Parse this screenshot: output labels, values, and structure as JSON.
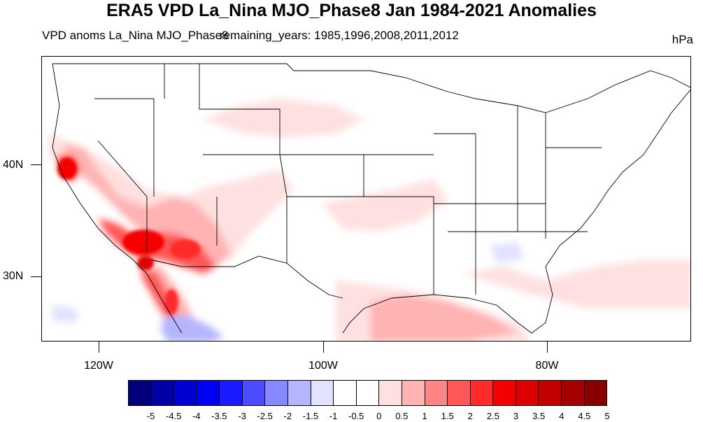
{
  "title": "ERA5 VPD La_Nina MJO_Phase8 Jan 1984-2021 Anomalies",
  "subtitle_left": "VPD anoms La_Nina MJO_Phase8",
  "subtitle_mid": "remaining_years: 1985,1996,2008,2011,2012",
  "units": "hPa",
  "lat_labels": [
    "40N",
    "30N"
  ],
  "lon_labels": [
    "120W",
    "100W",
    "80W"
  ],
  "colorbar": {
    "levels": [
      "-5",
      "-4.5",
      "-4",
      "-3.5",
      "-3",
      "-2.5",
      "-2",
      "-1.5",
      "-1",
      "-0.5",
      "0",
      "0.5",
      "1",
      "1.5",
      "2",
      "2.5",
      "3",
      "3.5",
      "4",
      "4.5",
      "5"
    ],
    "colors": [
      "#00007f",
      "#0000a8",
      "#0000d2",
      "#0000f2",
      "#1a1aff",
      "#4b4bff",
      "#8787ff",
      "#b5b5ff",
      "#e2e2ff",
      "#ffffff",
      "#ffffff",
      "#ffe0e0",
      "#ffb3b3",
      "#ff8585",
      "#ff5757",
      "#ff2a2a",
      "#f50000",
      "#dc0000",
      "#c20000",
      "#a60000",
      "#880000"
    ]
  },
  "map_data": {
    "variable": "VPD anomaly",
    "region": "Contiguous United States",
    "features": [
      {
        "region": "Northern California / Sacramento Valley",
        "anomaly_range": "2 to 3"
      },
      {
        "region": "Southern California / Lower Colorado River / Southern Arizona",
        "anomaly_range": "1.5 to 3"
      },
      {
        "region": "Baja California peninsula",
        "anomaly_range": "2 to 3"
      },
      {
        "region": "Gulf of Mexico",
        "anomaly_range": "0.5 to 1"
      },
      {
        "region": "Pacific off Baja California",
        "anomaly_range": "-1 to -1.5"
      },
      {
        "region": "Southeast US (Alabama / Georgia)",
        "anomaly_range": "-0.5"
      }
    ]
  }
}
